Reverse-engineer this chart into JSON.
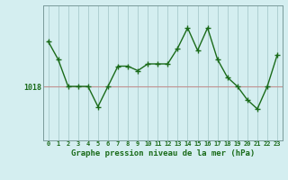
{
  "hours": [
    0,
    1,
    2,
    3,
    4,
    5,
    6,
    7,
    8,
    9,
    10,
    11,
    12,
    13,
    14,
    15,
    16,
    17,
    18,
    19,
    20,
    21,
    22,
    23
  ],
  "pressure": [
    1028,
    1024,
    1018,
    1018,
    1018,
    1013.5,
    1018,
    1022.5,
    1022.5,
    1021.5,
    1023,
    1023,
    1023,
    1026.5,
    1031,
    1026,
    1031,
    1024,
    1020,
    1018,
    1015,
    1013,
    1018,
    1025
  ],
  "ref_value": 1018,
  "line_color": "#1a6b1a",
  "marker_color": "#1a6b1a",
  "bg_color": "#d4eef0",
  "grid_color_v": "#aed0d2",
  "grid_color_h": "#c09090",
  "ylabel": "1018",
  "xlabel": "Graphe pression niveau de la mer (hPa)",
  "xlabel_color": "#1a6b1a",
  "ylim_min": 1006,
  "ylim_max": 1036,
  "tick_color": "#1a6b1a",
  "spine_color": "#7a9a9a"
}
